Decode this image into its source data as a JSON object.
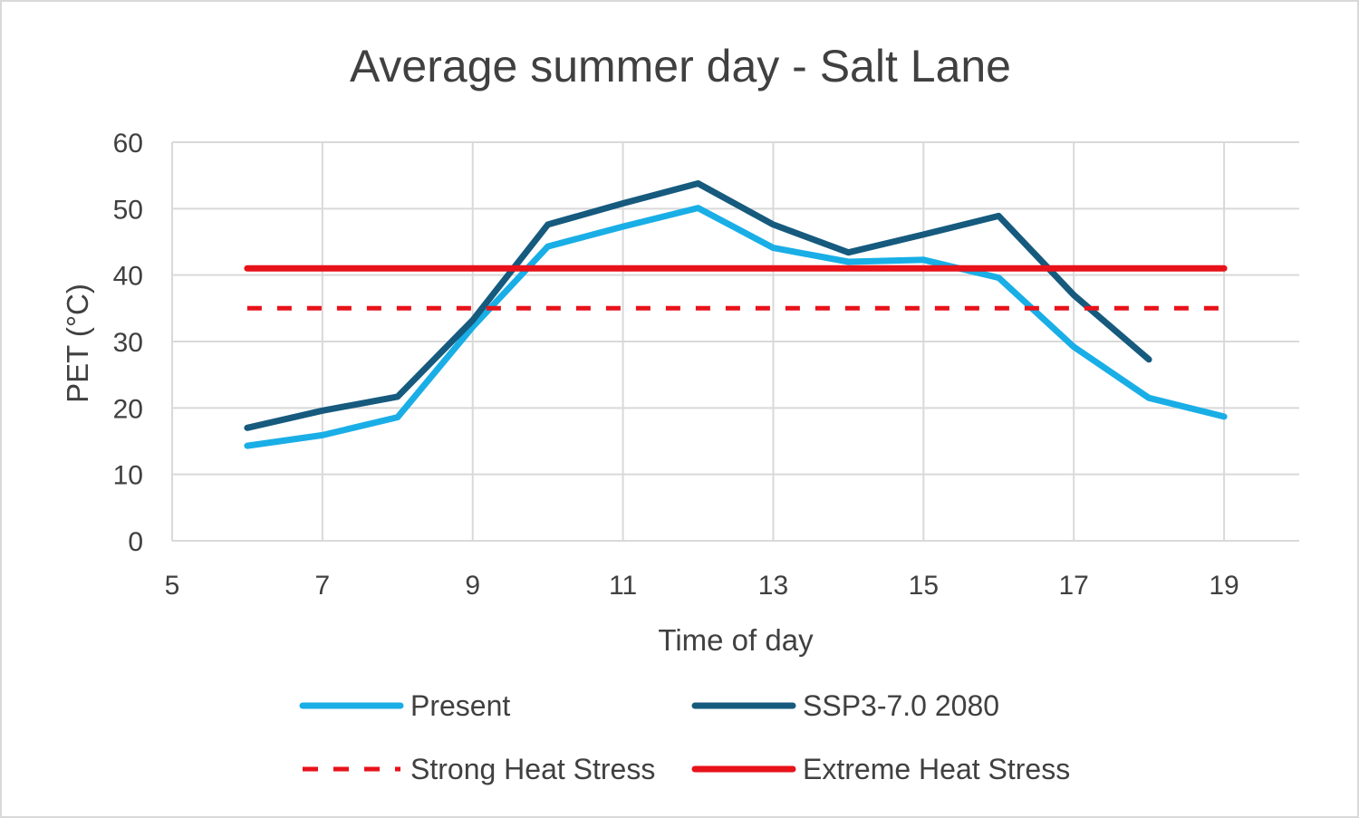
{
  "chart_data": {
    "type": "line",
    "title": "Average summer day - Salt Lane",
    "xlabel": "Time of day",
    "ylabel": "PET (°C)",
    "xlim": [
      5,
      20
    ],
    "ylim": [
      0,
      60
    ],
    "x_ticks": [
      5,
      7,
      9,
      11,
      13,
      15,
      17,
      19
    ],
    "y_ticks": [
      0,
      10,
      20,
      30,
      40,
      50,
      60
    ],
    "grid": true,
    "legend_position": "bottom",
    "series": [
      {
        "name": "Present",
        "color": "#19aee6",
        "style": "solid",
        "points": [
          [
            6,
            14.3
          ],
          [
            7,
            15.9
          ],
          [
            8,
            18.6
          ],
          [
            9,
            32.2
          ],
          [
            10,
            44.3
          ],
          [
            11,
            47.3
          ],
          [
            12,
            50.1
          ],
          [
            13,
            44.1
          ],
          [
            14,
            42.0
          ],
          [
            15,
            42.3
          ],
          [
            16,
            39.6
          ],
          [
            17,
            29.2
          ],
          [
            18,
            21.5
          ],
          [
            19,
            18.7
          ]
        ]
      },
      {
        "name": "SSP3-7.0 2080",
        "color": "#165a7e",
        "style": "solid",
        "points": [
          [
            6,
            17.0
          ],
          [
            7,
            19.6
          ],
          [
            8,
            21.7
          ],
          [
            9,
            33.2
          ],
          [
            10,
            47.6
          ],
          [
            11,
            50.8
          ],
          [
            12,
            53.8
          ],
          [
            13,
            47.6
          ],
          [
            14,
            43.4
          ],
          [
            15,
            46.1
          ],
          [
            16,
            48.9
          ],
          [
            17,
            37.0
          ],
          [
            18,
            27.3
          ]
        ]
      },
      {
        "name": "Strong Heat Stress",
        "color": "#e8121a",
        "style": "dashed",
        "points": [
          [
            6,
            35
          ],
          [
            19,
            35
          ]
        ]
      },
      {
        "name": "Extreme Heat Stress",
        "color": "#e8121a",
        "style": "solid",
        "points": [
          [
            6,
            41
          ],
          [
            19,
            41
          ]
        ]
      }
    ]
  }
}
